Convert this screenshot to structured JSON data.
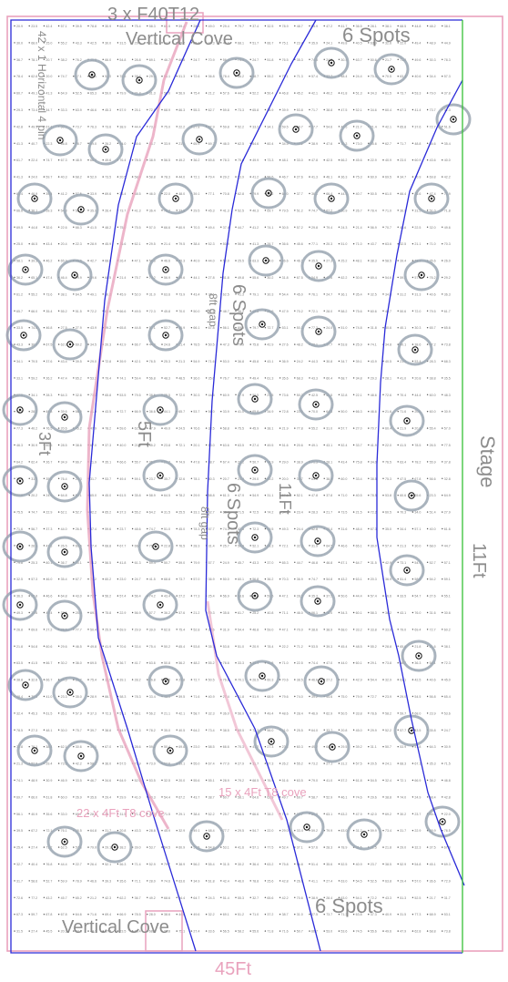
{
  "labels": {
    "top_fixture": "3 x F40T12",
    "top_cove": "Vertical Cove",
    "top_spots": "6 Spots",
    "left_strip": "42 x 1 Horizontal 4 pin",
    "gap_upper": "8ft gap",
    "spots_middle_upper": "6 Spots",
    "dim_3ft": "3Ft",
    "dim_5ft": "5Ft",
    "gap_lower": "8ft gap",
    "spots_middle_lower": "6 Spots",
    "dim_11ft_inner": "11Ft",
    "stage": "Stage",
    "dim_11ft_right": "11Ft",
    "cove_right": "15 x 4Ft T8 cove",
    "cove_left": "22 x 4Ft T8 cove",
    "bottom_spots": "6 Spots",
    "bottom_cove": "Vertical Cove",
    "dim_45ft": "45Ft"
  },
  "colors": {
    "border_blue": "#2a2ad8",
    "green_edge": "#36c036",
    "pink": "#e9a2bd",
    "fixture_ring": "#9aa6b2",
    "grid_text": "#7a7a7a"
  }
}
